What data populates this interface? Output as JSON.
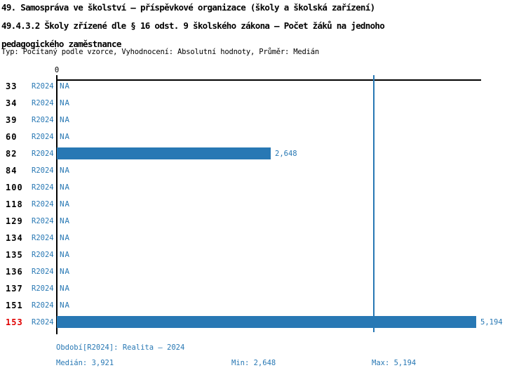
{
  "header": {
    "title_line1": "49. Samospráva ve školství – příspěvkové organizace (školy a školská zařízení)",
    "title_line2": "49.4.3.2 Školy zřízené dle § 16 odst. 9 školského zákona – Počet žáků na jednoho",
    "title_line3": "pedagogického zaměstnance",
    "meta": "Typ: Počítaný podle vzorce, Vyhodnocení: Absolutní hodnoty, Průměr: Medián"
  },
  "chart": {
    "axis_zero_label": "0",
    "rows": [
      {
        "id": "33",
        "period": "R2024",
        "display": "NA",
        "value": null,
        "highlight": false
      },
      {
        "id": "34",
        "period": "R2024",
        "display": "NA",
        "value": null,
        "highlight": false
      },
      {
        "id": "39",
        "period": "R2024",
        "display": "NA",
        "value": null,
        "highlight": false
      },
      {
        "id": "60",
        "period": "R2024",
        "display": "NA",
        "value": null,
        "highlight": false
      },
      {
        "id": "82",
        "period": "R2024",
        "display": "2,648",
        "value": 2648,
        "highlight": false
      },
      {
        "id": "84",
        "period": "R2024",
        "display": "NA",
        "value": null,
        "highlight": false
      },
      {
        "id": "100",
        "period": "R2024",
        "display": "NA",
        "value": null,
        "highlight": false
      },
      {
        "id": "118",
        "period": "R2024",
        "display": "NA",
        "value": null,
        "highlight": false
      },
      {
        "id": "129",
        "period": "R2024",
        "display": "NA",
        "value": null,
        "highlight": false
      },
      {
        "id": "134",
        "period": "R2024",
        "display": "NA",
        "value": null,
        "highlight": false
      },
      {
        "id": "135",
        "period": "R2024",
        "display": "NA",
        "value": null,
        "highlight": false
      },
      {
        "id": "136",
        "period": "R2024",
        "display": "NA",
        "value": null,
        "highlight": false
      },
      {
        "id": "137",
        "period": "R2024",
        "display": "NA",
        "value": null,
        "highlight": false
      },
      {
        "id": "151",
        "period": "R2024",
        "display": "NA",
        "value": null,
        "highlight": false
      },
      {
        "id": "153",
        "period": "R2024",
        "display": "5,194",
        "value": 5194,
        "highlight": true
      }
    ]
  },
  "footer": {
    "period_info": "Období[R2024]: Realita – 2024",
    "median": "Medián: 3,921",
    "min": "Min: 2,648",
    "max": "Max: 5,194"
  },
  "colors": {
    "accent_blue": "#2878b4",
    "highlight_red": "#e00000",
    "axis_black": "#000000"
  },
  "chart_data": {
    "type": "bar",
    "orientation": "horizontal",
    "title": "49. Samospráva ve školství – příspěvkové organizace (školy a školská zařízení)",
    "subtitle": "49.4.3.2 Školy zřízené dle § 16 odst. 9 školského zákona – Počet žáků na jednoho pedagogického zaměstnance",
    "meta": "Typ: Počítaný podle vzorce, Vyhodnocení: Absolutní hodnoty, Průměr: Medián",
    "categories": [
      "33",
      "34",
      "39",
      "60",
      "82",
      "84",
      "100",
      "118",
      "129",
      "134",
      "135",
      "136",
      "137",
      "151",
      "153"
    ],
    "series": [
      {
        "name": "R2024",
        "values": [
          null,
          null,
          null,
          null,
          2648,
          null,
          null,
          null,
          null,
          null,
          null,
          null,
          null,
          null,
          5194
        ]
      }
    ],
    "na_label": "NA",
    "median": 3921,
    "min": 2648,
    "max": 5194,
    "xlim": [
      0,
      5260
    ],
    "x_ticks": [
      0
    ],
    "grid": false,
    "legend_position": "none"
  }
}
